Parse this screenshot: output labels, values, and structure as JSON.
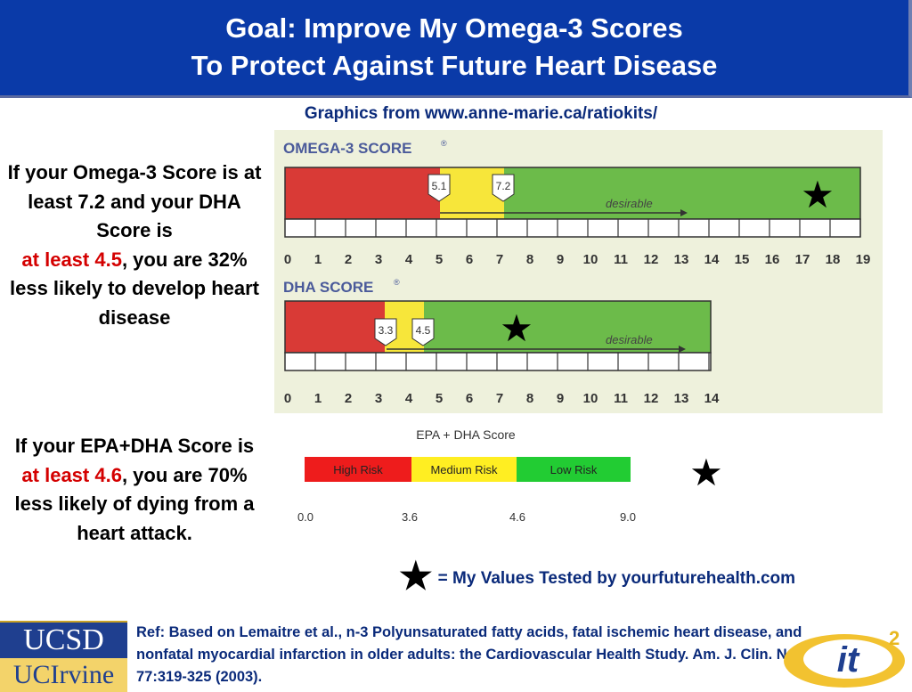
{
  "header": {
    "title_line1": "Goal: Improve My Omega-3 Scores",
    "title_line2": "To Protect Against Future Heart Disease"
  },
  "source": "Graphics from www.anne-marie.ca/ratiokits/",
  "left1": {
    "part1": "If your Omega-3 Score is at least 7.2 and your DHA Score is",
    "highlight": "at least 4.5",
    "part2": ", you are 32% less likely to develop heart disease"
  },
  "left2": {
    "part1": "If your EPA+DHA Score is ",
    "highlight": "at least 4.6",
    "part2": ", you are 70% less likely of dying from a heart attack."
  },
  "omega": {
    "title": "OMEGA-3 SCORE",
    "reg": "®",
    "ticks": [
      "0",
      "1",
      "2",
      "3",
      "4",
      "5",
      "6",
      "7",
      "8",
      "9",
      "10",
      "11",
      "12",
      "13",
      "14",
      "15",
      "16",
      "17",
      "18",
      "19"
    ],
    "marker1": "5.1",
    "marker2": "7.2",
    "desirable": "desirable",
    "colors": {
      "red": "#d93a36",
      "yellow": "#f7e63a",
      "green": "#6cbb4a"
    }
  },
  "dha": {
    "title": "DHA SCORE",
    "reg": "®",
    "ticks": [
      "0",
      "1",
      "2",
      "3",
      "4",
      "5",
      "6",
      "7",
      "8",
      "9",
      "10",
      "11",
      "12",
      "13",
      "14"
    ],
    "marker1": "3.3",
    "marker2": "4.5",
    "desirable": "desirable"
  },
  "epa": {
    "title": "EPA + DHA Score",
    "high": "High Risk",
    "medium": "Medium Risk",
    "low": "Low Risk",
    "ticks": [
      "0.0",
      "3.6",
      "4.6",
      "9.0"
    ],
    "colors": {
      "high": "#ee1c1c",
      "medium": "#ffee22",
      "low": "#22cc33"
    }
  },
  "star_glyph": "★",
  "legend": "= My Values Tested by yourfuturehealth.com",
  "ref": "Ref: Based on Lemaitre et al., n-3 Polyunsaturated fatty acids, fatal ischemic heart disease, and nonfatal myocardial infarction in older adults: the Cardiovascular Health Study. Am. J. Clin. Nutr. 77:319-325 (2003).",
  "logos": {
    "ucsd": "UCSD",
    "ucirvine": "UCIrvine",
    "it2": "it",
    "it2_sup": "2"
  }
}
